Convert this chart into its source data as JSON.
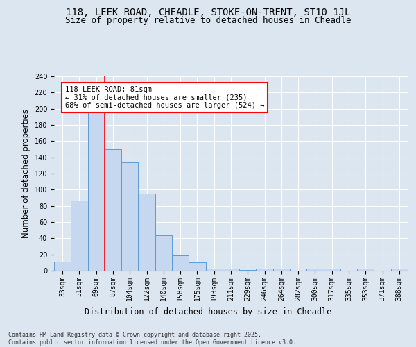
{
  "title1": "118, LEEK ROAD, CHEADLE, STOKE-ON-TRENT, ST10 1JL",
  "title2": "Size of property relative to detached houses in Cheadle",
  "xlabel": "Distribution of detached houses by size in Cheadle",
  "ylabel": "Number of detached properties",
  "categories": [
    "33sqm",
    "51sqm",
    "69sqm",
    "87sqm",
    "104sqm",
    "122sqm",
    "140sqm",
    "158sqm",
    "175sqm",
    "193sqm",
    "211sqm",
    "229sqm",
    "246sqm",
    "264sqm",
    "282sqm",
    "300sqm",
    "317sqm",
    "335sqm",
    "353sqm",
    "371sqm",
    "388sqm"
  ],
  "values": [
    11,
    87,
    196,
    150,
    134,
    95,
    44,
    19,
    10,
    3,
    3,
    1,
    3,
    3,
    0,
    3,
    3,
    0,
    3,
    0,
    3
  ],
  "bar_color": "#c5d8f0",
  "bar_edge_color": "#5b9bd5",
  "red_line_x": 2.5,
  "annotation_line1": "118 LEEK ROAD: 81sqm",
  "annotation_line2": "← 31% of detached houses are smaller (235)",
  "annotation_line3": "68% of semi-detached houses are larger (524) →",
  "annotation_box_color": "white",
  "annotation_border_color": "red",
  "red_line_color": "red",
  "background_color": "#dce6f1",
  "plot_bg_color": "#dce6f1",
  "footer_text": "Contains HM Land Registry data © Crown copyright and database right 2025.\nContains public sector information licensed under the Open Government Licence v3.0.",
  "ylim": [
    0,
    240
  ],
  "yticks": [
    0,
    20,
    40,
    60,
    80,
    100,
    120,
    140,
    160,
    180,
    200,
    220,
    240
  ],
  "grid_color": "#ffffff",
  "title_fontsize": 10,
  "subtitle_fontsize": 9,
  "tick_fontsize": 7,
  "label_fontsize": 8.5,
  "footer_fontsize": 6,
  "annot_fontsize": 7.5
}
